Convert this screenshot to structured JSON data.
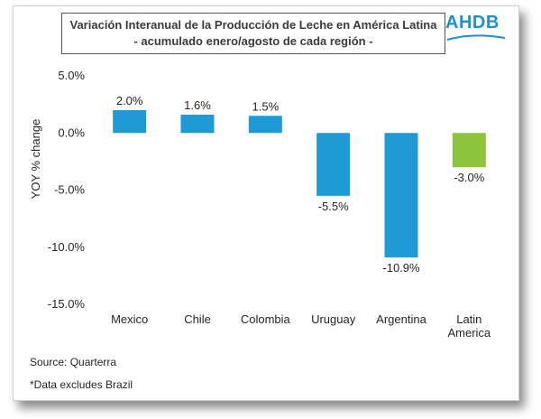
{
  "header": {
    "title_line1": "Variación Interanual de la Producción de Leche en América Latina",
    "title_line2": "- acumulado enero/agosto de cada región -",
    "logo_text": "AHDB"
  },
  "footer": {
    "source": "Source: Quarterra",
    "note": "*Data excludes Brazil"
  },
  "colors": {
    "bar_primary": "#1f9ad6",
    "bar_highlight": "#8cc43c"
  },
  "chart_data": {
    "type": "bar",
    "title": "Variación Interanual de la Producción de Leche en América Latina - acumulado enero/agosto de cada región -",
    "xlabel": "",
    "ylabel": "YOY % change",
    "ylim": [
      -15,
      5
    ],
    "yticks": [
      5,
      0,
      -5,
      -10,
      -15
    ],
    "ytick_labels": [
      "5.0%",
      "0.0%",
      "-5.0%",
      "-10.0%",
      "-15.0%"
    ],
    "categories": [
      {
        "label": [
          "Mexico"
        ],
        "value": 2.0,
        "display": "2.0%",
        "highlight": false
      },
      {
        "label": [
          "Chile"
        ],
        "value": 1.6,
        "display": "1.6%",
        "highlight": false
      },
      {
        "label": [
          "Colombia"
        ],
        "value": 1.5,
        "display": "1.5%",
        "highlight": false
      },
      {
        "label": [
          "Uruguay"
        ],
        "value": -5.5,
        "display": "-5.5%",
        "highlight": false
      },
      {
        "label": [
          "Argentina"
        ],
        "value": -10.9,
        "display": "-10.9%",
        "highlight": false
      },
      {
        "label": [
          "Latin",
          "America"
        ],
        "value": -3.0,
        "display": "-3.0%",
        "highlight": true
      }
    ],
    "grid": false,
    "legend": "none"
  }
}
